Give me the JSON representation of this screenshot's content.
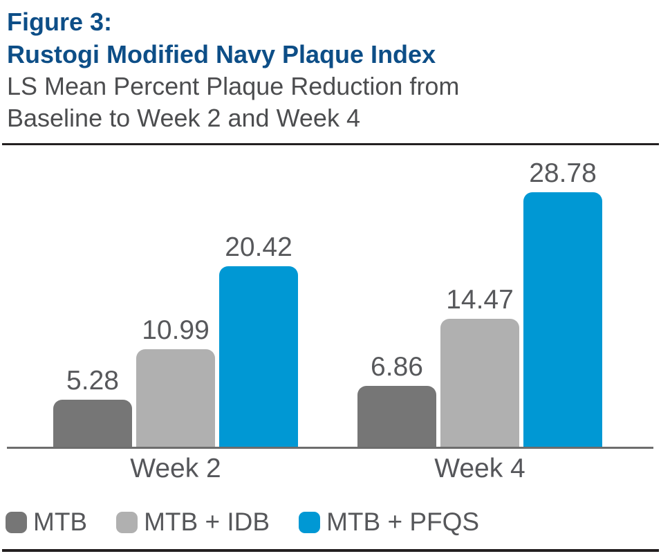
{
  "header": {
    "figure_label": "Figure 3:",
    "title": "Rustogi Modified Navy Plaque Index",
    "subtitle_line1": "LS Mean Percent Plaque Reduction from",
    "subtitle_line2": "Baseline to Week 2 and Week 4"
  },
  "chart_data": {
    "type": "bar",
    "title": "Figure 3: Rustogi Modified Navy Plaque Index",
    "subtitle": "LS Mean Percent Plaque Reduction from Baseline to Week 2 and Week 4",
    "categories": [
      "Week 2",
      "Week 4"
    ],
    "series": [
      {
        "name": "MTB",
        "values": [
          5.28,
          6.86
        ],
        "color": "#767676"
      },
      {
        "name": "MTB + IDB",
        "values": [
          10.99,
          14.47
        ],
        "color": "#b0b0b0"
      },
      {
        "name": "MTB + PFQS",
        "values": [
          20.42,
          28.78
        ],
        "color": "#0098d4"
      }
    ],
    "xlabel": "",
    "ylabel": "LS Mean Percent Plaque Reduction",
    "ylim": [
      0,
      30
    ],
    "grid": false,
    "value_labels": true,
    "legend_position": "bottom"
  },
  "colors": {
    "title_blue": "#0d4e87",
    "subtitle_gray": "#4c4d4f",
    "label_gray": "#57585b",
    "axis_gray": "#6d6d6d",
    "divider_black": "#231f20"
  }
}
